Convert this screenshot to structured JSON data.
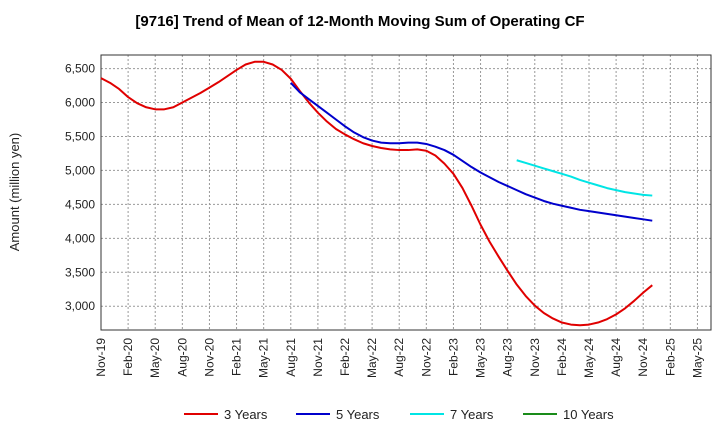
{
  "chart_data": {
    "type": "line",
    "title": "[9716]  Trend of Mean of 12-Month Moving Sum of Operating CF",
    "xlabel": "",
    "ylabel": "Amount (million yen)",
    "ylim": [
      2650,
      6700
    ],
    "y_ticks": [
      3000,
      3500,
      4000,
      4500,
      5000,
      5500,
      6000,
      6500
    ],
    "y_tick_labels": [
      "3,000",
      "3,500",
      "4,000",
      "4,500",
      "5,000",
      "5,500",
      "6,000",
      "6,500"
    ],
    "x_tick_labels": [
      "Nov-19",
      "Feb-20",
      "May-20",
      "Aug-20",
      "Nov-20",
      "Feb-21",
      "May-21",
      "Aug-21",
      "Nov-21",
      "Feb-22",
      "May-22",
      "Aug-22",
      "Nov-22",
      "Feb-23",
      "May-23",
      "Aug-23",
      "Nov-23",
      "Feb-24",
      "May-24",
      "Aug-24",
      "Nov-24",
      "Feb-25",
      "May-25"
    ],
    "x_index_note": "x = months since Nov-19",
    "grid": true,
    "legend_position": "bottom",
    "series": [
      {
        "name": "3 Years",
        "color": "#e00000",
        "points": [
          [
            0,
            6360
          ],
          [
            1,
            6290
          ],
          [
            2,
            6200
          ],
          [
            3,
            6080
          ],
          [
            4,
            5990
          ],
          [
            5,
            5930
          ],
          [
            6,
            5900
          ],
          [
            7,
            5900
          ],
          [
            8,
            5930
          ],
          [
            9,
            6000
          ],
          [
            10,
            6070
          ],
          [
            11,
            6140
          ],
          [
            12,
            6220
          ],
          [
            13,
            6300
          ],
          [
            14,
            6390
          ],
          [
            15,
            6480
          ],
          [
            16,
            6560
          ],
          [
            17,
            6600
          ],
          [
            18,
            6600
          ],
          [
            19,
            6560
          ],
          [
            20,
            6480
          ],
          [
            21,
            6350
          ],
          [
            22,
            6170
          ],
          [
            23,
            6000
          ],
          [
            24,
            5850
          ],
          [
            25,
            5720
          ],
          [
            26,
            5610
          ],
          [
            27,
            5530
          ],
          [
            28,
            5460
          ],
          [
            29,
            5400
          ],
          [
            30,
            5360
          ],
          [
            31,
            5330
          ],
          [
            32,
            5310
          ],
          [
            33,
            5300
          ],
          [
            34,
            5300
          ],
          [
            35,
            5310
          ],
          [
            36,
            5290
          ],
          [
            37,
            5220
          ],
          [
            38,
            5100
          ],
          [
            39,
            4950
          ],
          [
            40,
            4740
          ],
          [
            41,
            4480
          ],
          [
            42,
            4200
          ],
          [
            43,
            3950
          ],
          [
            44,
            3730
          ],
          [
            45,
            3520
          ],
          [
            46,
            3320
          ],
          [
            47,
            3150
          ],
          [
            48,
            3010
          ],
          [
            49,
            2900
          ],
          [
            50,
            2820
          ],
          [
            51,
            2760
          ],
          [
            52,
            2730
          ],
          [
            53,
            2720
          ],
          [
            54,
            2730
          ],
          [
            55,
            2760
          ],
          [
            56,
            2810
          ],
          [
            57,
            2880
          ],
          [
            58,
            2970
          ],
          [
            59,
            3080
          ],
          [
            60,
            3200
          ],
          [
            61,
            3310
          ]
        ]
      },
      {
        "name": "5 Years",
        "color": "#0000cc",
        "points": [
          [
            21,
            6290
          ],
          [
            22,
            6150
          ],
          [
            23,
            6050
          ],
          [
            24,
            5950
          ],
          [
            25,
            5850
          ],
          [
            26,
            5750
          ],
          [
            27,
            5650
          ],
          [
            28,
            5560
          ],
          [
            29,
            5490
          ],
          [
            30,
            5440
          ],
          [
            31,
            5410
          ],
          [
            32,
            5400
          ],
          [
            33,
            5400
          ],
          [
            34,
            5410
          ],
          [
            35,
            5410
          ],
          [
            36,
            5390
          ],
          [
            37,
            5350
          ],
          [
            38,
            5300
          ],
          [
            39,
            5230
          ],
          [
            40,
            5140
          ],
          [
            41,
            5050
          ],
          [
            42,
            4970
          ],
          [
            43,
            4900
          ],
          [
            44,
            4830
          ],
          [
            45,
            4770
          ],
          [
            46,
            4710
          ],
          [
            47,
            4650
          ],
          [
            48,
            4600
          ],
          [
            49,
            4550
          ],
          [
            50,
            4510
          ],
          [
            51,
            4480
          ],
          [
            52,
            4450
          ],
          [
            53,
            4420
          ],
          [
            54,
            4400
          ],
          [
            55,
            4380
          ],
          [
            56,
            4360
          ],
          [
            57,
            4340
          ],
          [
            58,
            4320
          ],
          [
            59,
            4300
          ],
          [
            60,
            4280
          ],
          [
            61,
            4260
          ]
        ]
      },
      {
        "name": "7 Years",
        "color": "#00e5e5",
        "points": [
          [
            46,
            5150
          ],
          [
            47,
            5110
          ],
          [
            48,
            5070
          ],
          [
            49,
            5030
          ],
          [
            50,
            4990
          ],
          [
            51,
            4950
          ],
          [
            52,
            4910
          ],
          [
            53,
            4860
          ],
          [
            54,
            4820
          ],
          [
            55,
            4780
          ],
          [
            56,
            4740
          ],
          [
            57,
            4710
          ],
          [
            58,
            4680
          ],
          [
            59,
            4660
          ],
          [
            60,
            4640
          ],
          [
            61,
            4630
          ]
        ]
      },
      {
        "name": "10 Years",
        "color": "#1a8c1a",
        "points": []
      }
    ]
  }
}
